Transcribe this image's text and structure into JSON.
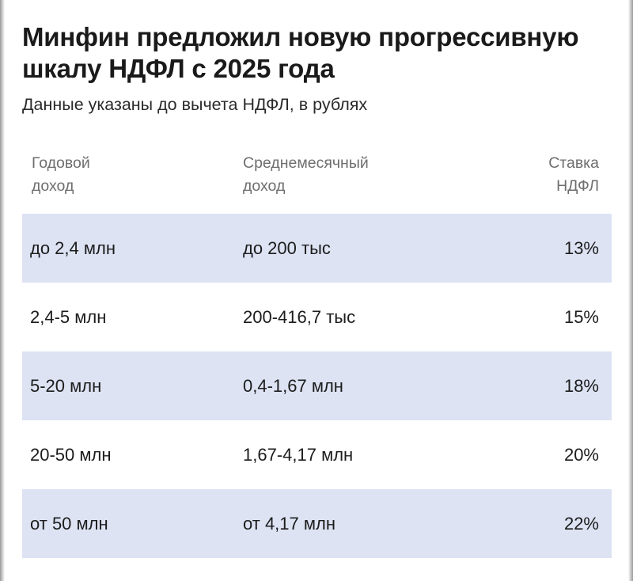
{
  "header": {
    "title_line1": "Минфин предложил новую прогрессивную",
    "title_line2": "шкалу НДФЛ с 2025 года",
    "subtitle": "Данные указаны до вычета НДФЛ, в рублях"
  },
  "table": {
    "columns": {
      "annual_line1": "Годовой",
      "annual_line2": "доход",
      "monthly_line1": "Среднемесячный",
      "monthly_line2": "доход",
      "rate_line1": "Ставка",
      "rate_line2": "НДФЛ"
    },
    "rows": [
      {
        "annual": "до 2,4 млн",
        "monthly": "до 200 тыс",
        "rate": "13%"
      },
      {
        "annual": "2,4-5 млн",
        "monthly": "200-416,7 тыс",
        "rate": "15%"
      },
      {
        "annual": "5-20 млн",
        "monthly": "0,4-1,67 млн",
        "rate": "18%"
      },
      {
        "annual": "20-50 млн",
        "monthly": "1,67-4,17 млн",
        "rate": "20%"
      },
      {
        "annual": "от 50 млн",
        "monthly": "от 4,17 млн",
        "rate": "22%"
      }
    ]
  },
  "colors": {
    "row_shade": "#dde3f3",
    "header_text": "#6e6e6e",
    "body_text": "#1c1c1c"
  }
}
